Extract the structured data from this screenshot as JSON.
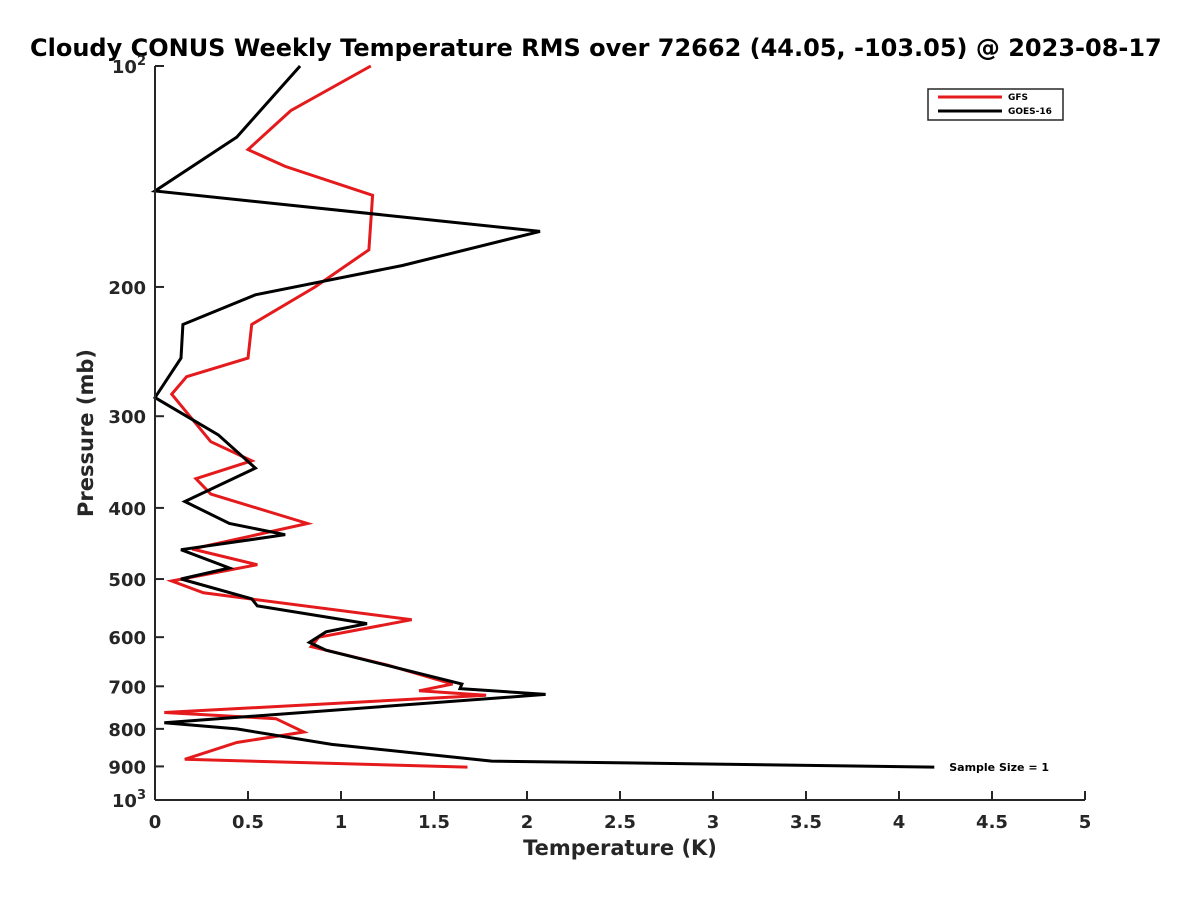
{
  "chart_data": {
    "type": "line",
    "title": "Cloudy CONUS Weekly Temperature RMS over 72662 (44.05, -103.05) @ 2023-08-17",
    "xlabel": "Temperature (K)",
    "ylabel": "Pressure (mb)",
    "xlim": [
      0,
      5
    ],
    "ylim": [
      100,
      1000
    ],
    "y_scale": "log",
    "y_reversed": true,
    "grid": false,
    "legend_position": "top-right",
    "x_ticks": [
      0,
      0.5,
      1,
      1.5,
      2,
      2.5,
      3,
      3.5,
      4,
      4.5,
      5
    ],
    "x_tick_labels": [
      "0",
      "0.5",
      "1",
      "1.5",
      "2",
      "2.5",
      "3",
      "3.5",
      "4",
      "4.5",
      "5"
    ],
    "y_ticks": [
      {
        "value": 100,
        "base": "10",
        "exp": "2"
      },
      {
        "value": 200,
        "label": "200"
      },
      {
        "value": 300,
        "label": "300"
      },
      {
        "value": 400,
        "label": "400"
      },
      {
        "value": 500,
        "label": "500"
      },
      {
        "value": 600,
        "label": "600"
      },
      {
        "value": 700,
        "label": "700"
      },
      {
        "value": 800,
        "label": "800"
      },
      {
        "value": 900,
        "label": "900"
      },
      {
        "value": 1000,
        "base": "10",
        "exp": "3"
      }
    ],
    "series": [
      {
        "name": "GFS",
        "color": "#e41a1c",
        "points": [
          [
            1.16,
            100
          ],
          [
            0.73,
            115
          ],
          [
            0.5,
            130
          ],
          [
            0.7,
            137
          ],
          [
            1.17,
            150
          ],
          [
            1.15,
            178
          ],
          [
            0.86,
            200
          ],
          [
            0.52,
            225
          ],
          [
            0.5,
            250
          ],
          [
            0.17,
            265
          ],
          [
            0.09,
            280
          ],
          [
            0.3,
            325
          ],
          [
            0.52,
            345
          ],
          [
            0.22,
            365
          ],
          [
            0.3,
            383
          ],
          [
            0.82,
            420
          ],
          [
            0.2,
            455
          ],
          [
            0.55,
            478
          ],
          [
            0.09,
            503
          ],
          [
            0.26,
            522
          ],
          [
            1.38,
            568
          ],
          [
            0.88,
            600
          ],
          [
            0.84,
            618
          ],
          [
            1.25,
            655
          ],
          [
            1.6,
            695
          ],
          [
            1.42,
            710
          ],
          [
            1.78,
            720
          ],
          [
            0.05,
            760
          ],
          [
            0.65,
            775
          ],
          [
            0.8,
            808
          ],
          [
            0.44,
            835
          ],
          [
            0.16,
            880
          ],
          [
            1.68,
            902
          ]
        ]
      },
      {
        "name": "GOES-16",
        "color": "#000000",
        "points": [
          [
            0.78,
            100
          ],
          [
            0.44,
            125
          ],
          [
            0.0,
            148
          ],
          [
            2.07,
            168
          ],
          [
            1.33,
            187
          ],
          [
            0.54,
            205
          ],
          [
            0.15,
            225
          ],
          [
            0.14,
            250
          ],
          [
            0.0,
            283
          ],
          [
            0.34,
            318
          ],
          [
            0.54,
            353
          ],
          [
            0.16,
            392
          ],
          [
            0.4,
            420
          ],
          [
            0.7,
            435
          ],
          [
            0.14,
            456
          ],
          [
            0.4,
            483
          ],
          [
            0.14,
            500
          ],
          [
            0.52,
            532
          ],
          [
            0.55,
            544
          ],
          [
            1.14,
            575
          ],
          [
            0.92,
            590
          ],
          [
            0.83,
            610
          ],
          [
            0.92,
            625
          ],
          [
            1.65,
            695
          ],
          [
            1.64,
            705
          ],
          [
            2.1,
            718
          ],
          [
            0.05,
            785
          ],
          [
            0.44,
            800
          ],
          [
            0.95,
            840
          ],
          [
            1.81,
            885
          ],
          [
            4.19,
            902
          ]
        ]
      }
    ],
    "annotations": [
      {
        "text": "Sample Size = 1",
        "x": 4.27,
        "y": 902
      }
    ]
  }
}
